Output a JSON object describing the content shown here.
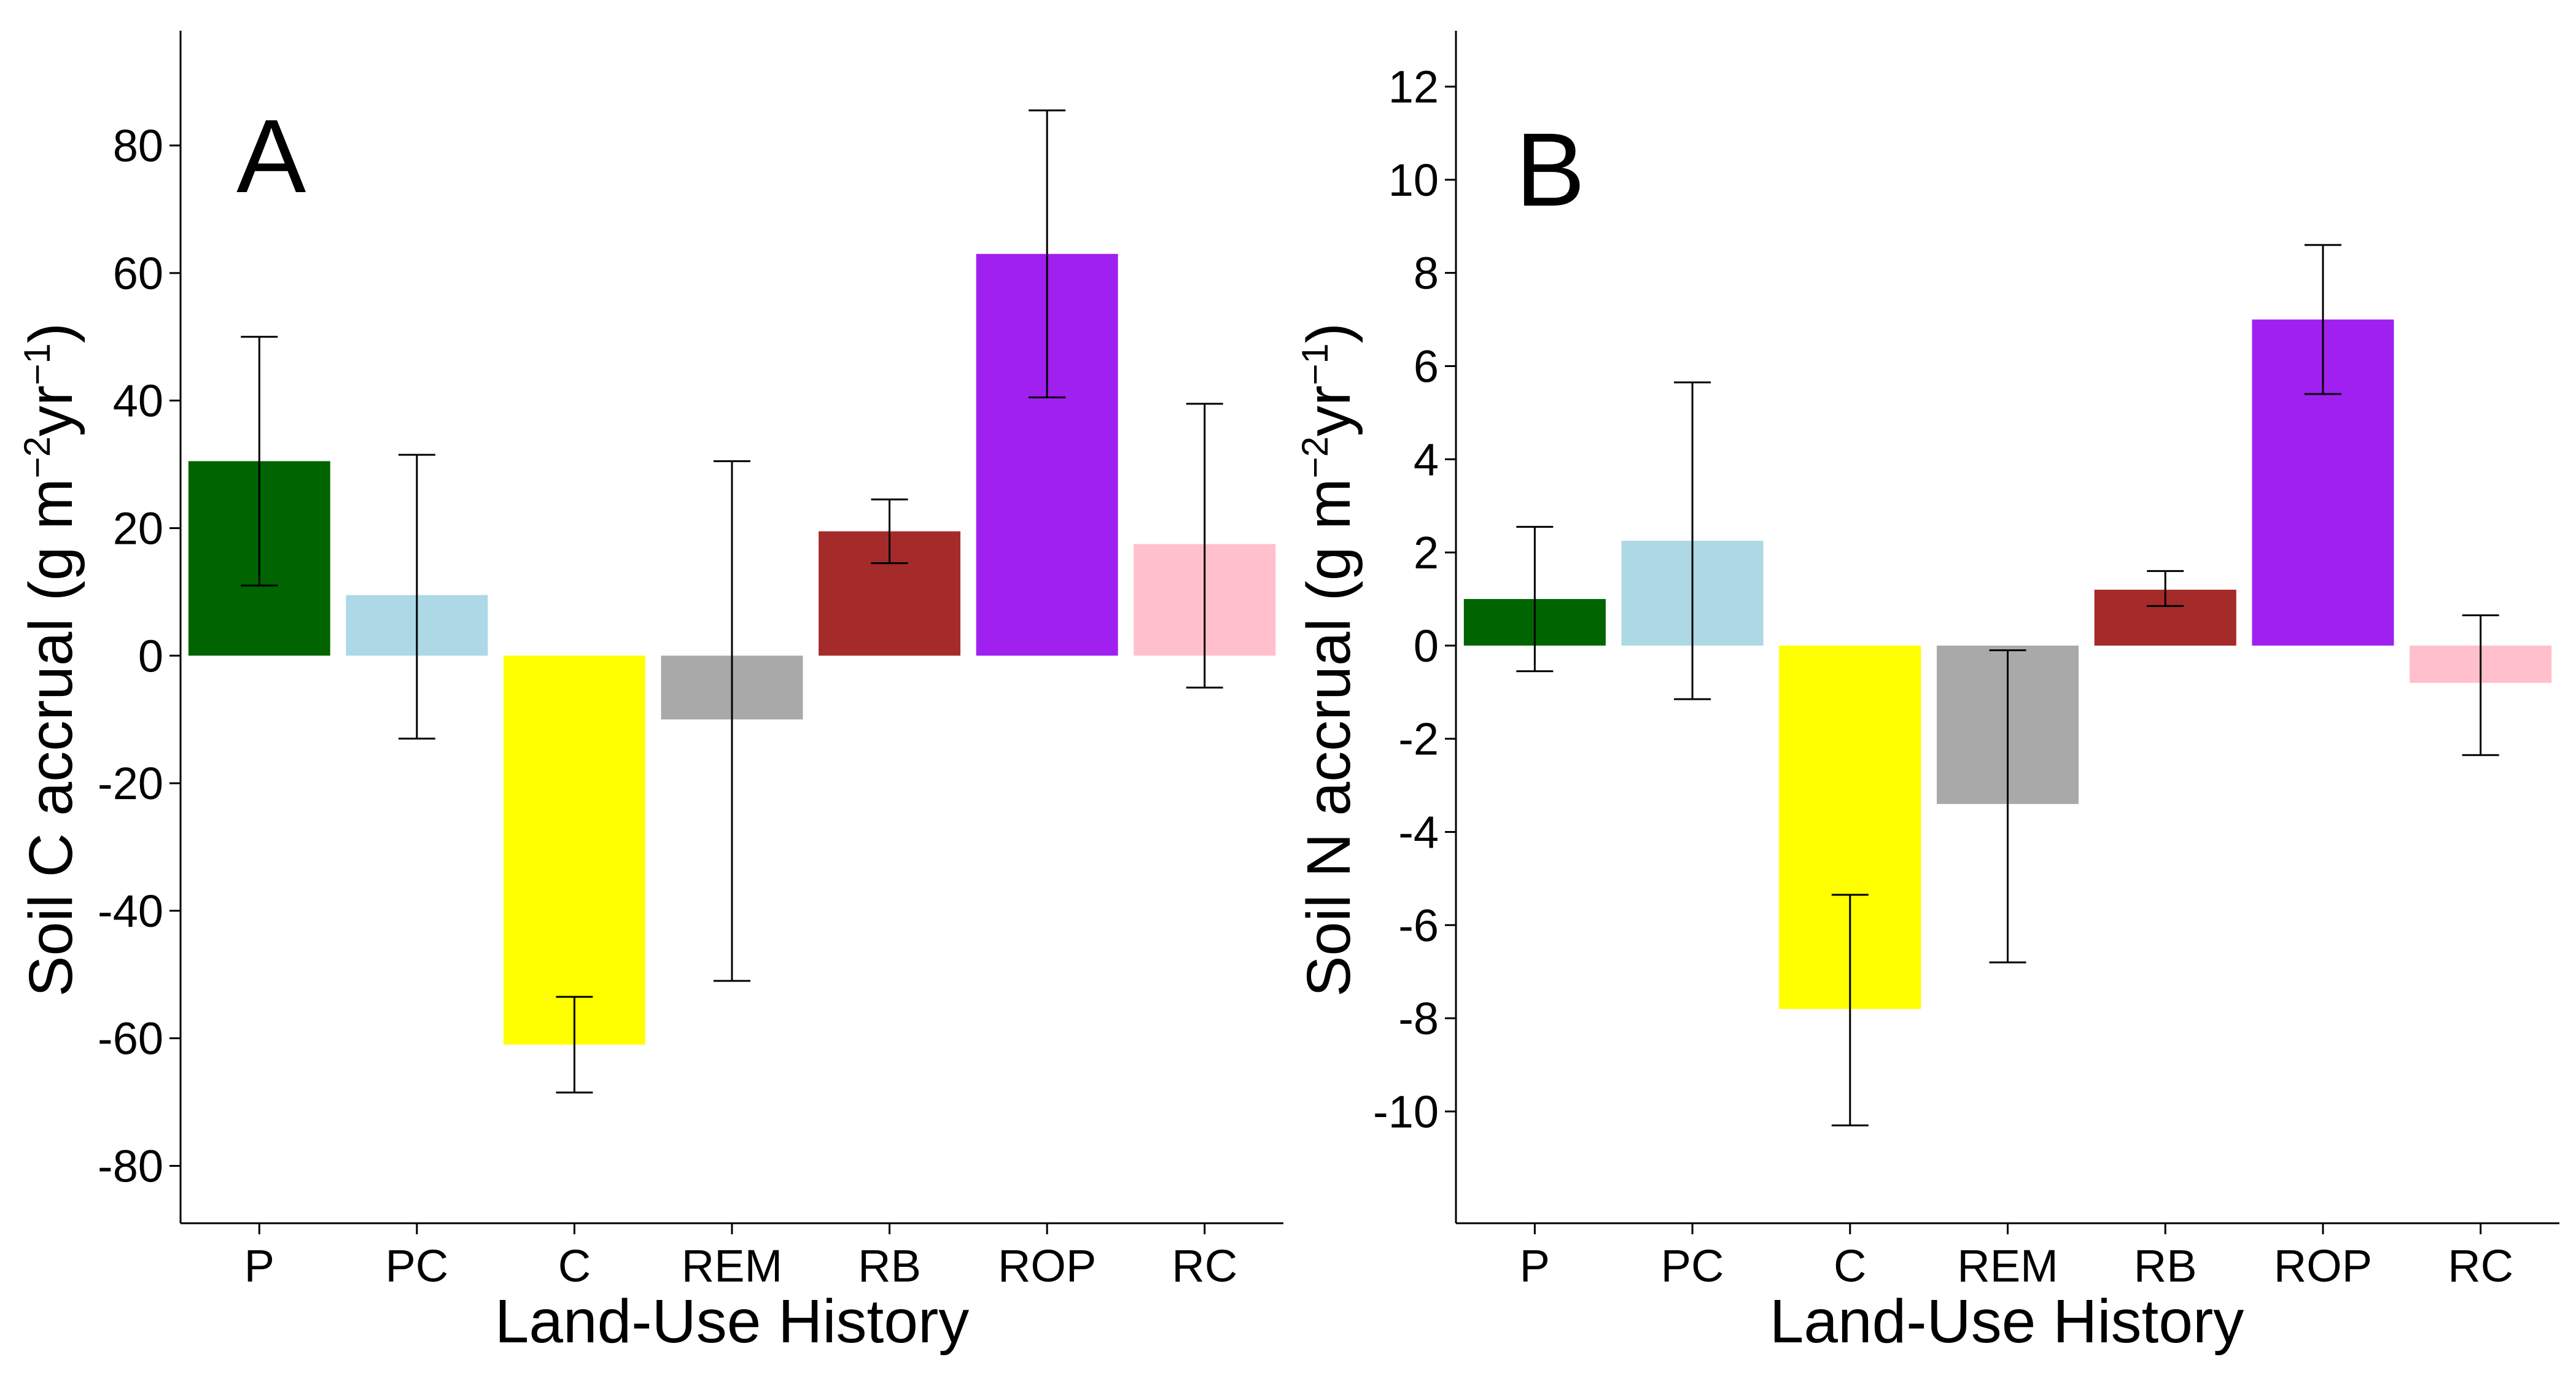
{
  "chart_data": [
    {
      "type": "bar",
      "panel_label": "A",
      "categories": [
        "P",
        "PC",
        "C",
        "REM",
        "RB",
        "ROP",
        "RC"
      ],
      "values": [
        30.5,
        9.5,
        -61.0,
        -10.0,
        19.5,
        63.0,
        17.5
      ],
      "error_low": [
        11.0,
        -13.0,
        -68.5,
        -51.0,
        14.5,
        40.5,
        -5.0
      ],
      "error_high": [
        50.0,
        31.5,
        -53.5,
        30.5,
        24.5,
        85.5,
        39.5
      ],
      "colors": [
        "#006400",
        "#add8e6",
        "#ffff00",
        "#a9a9a9",
        "#a52a2a",
        "#a020f0",
        "#ffc0cb"
      ],
      "xlabel": "Land-Use History",
      "ylabel_parts": [
        "Soil C accrual (g m",
        "−2",
        "yr",
        "−1",
        ")"
      ],
      "ylim": [
        -89,
        98
      ],
      "yticks": [
        -80,
        -60,
        -40,
        -20,
        0,
        20,
        40,
        60,
        80
      ],
      "ytick_labels": [
        "-80",
        "-60",
        "-40",
        "-20",
        "0",
        "20",
        "40",
        "60",
        "80"
      ],
      "grid": false
    },
    {
      "type": "bar",
      "panel_label": "B",
      "categories": [
        "P",
        "PC",
        "C",
        "REM",
        "RB",
        "ROP",
        "RC"
      ],
      "values": [
        1.0,
        2.25,
        -7.8,
        -3.4,
        1.2,
        7.0,
        -0.8
      ],
      "error_low": [
        -0.55,
        -1.15,
        -10.3,
        -6.8,
        0.85,
        5.4,
        -2.35
      ],
      "error_high": [
        2.55,
        5.65,
        -5.35,
        -0.1,
        1.6,
        8.6,
        0.65
      ],
      "colors": [
        "#006400",
        "#add8e6",
        "#ffff00",
        "#a9a9a9",
        "#a52a2a",
        "#a020f0",
        "#ffc0cb"
      ],
      "xlabel": "Land-Use History",
      "ylabel_parts": [
        "Soil N accrual (g m",
        "−2",
        "yr",
        "−1",
        ")"
      ],
      "ylim": [
        -12.4,
        13.2
      ],
      "yticks": [
        -10,
        -8,
        -6,
        -4,
        -2,
        0,
        2,
        4,
        6,
        8,
        10,
        12
      ],
      "ytick_labels": [
        "-10",
        "-8",
        "-6",
        "-4",
        "-2",
        "0",
        "2",
        "4",
        "6",
        "8",
        "10",
        "12"
      ],
      "grid": false
    }
  ]
}
